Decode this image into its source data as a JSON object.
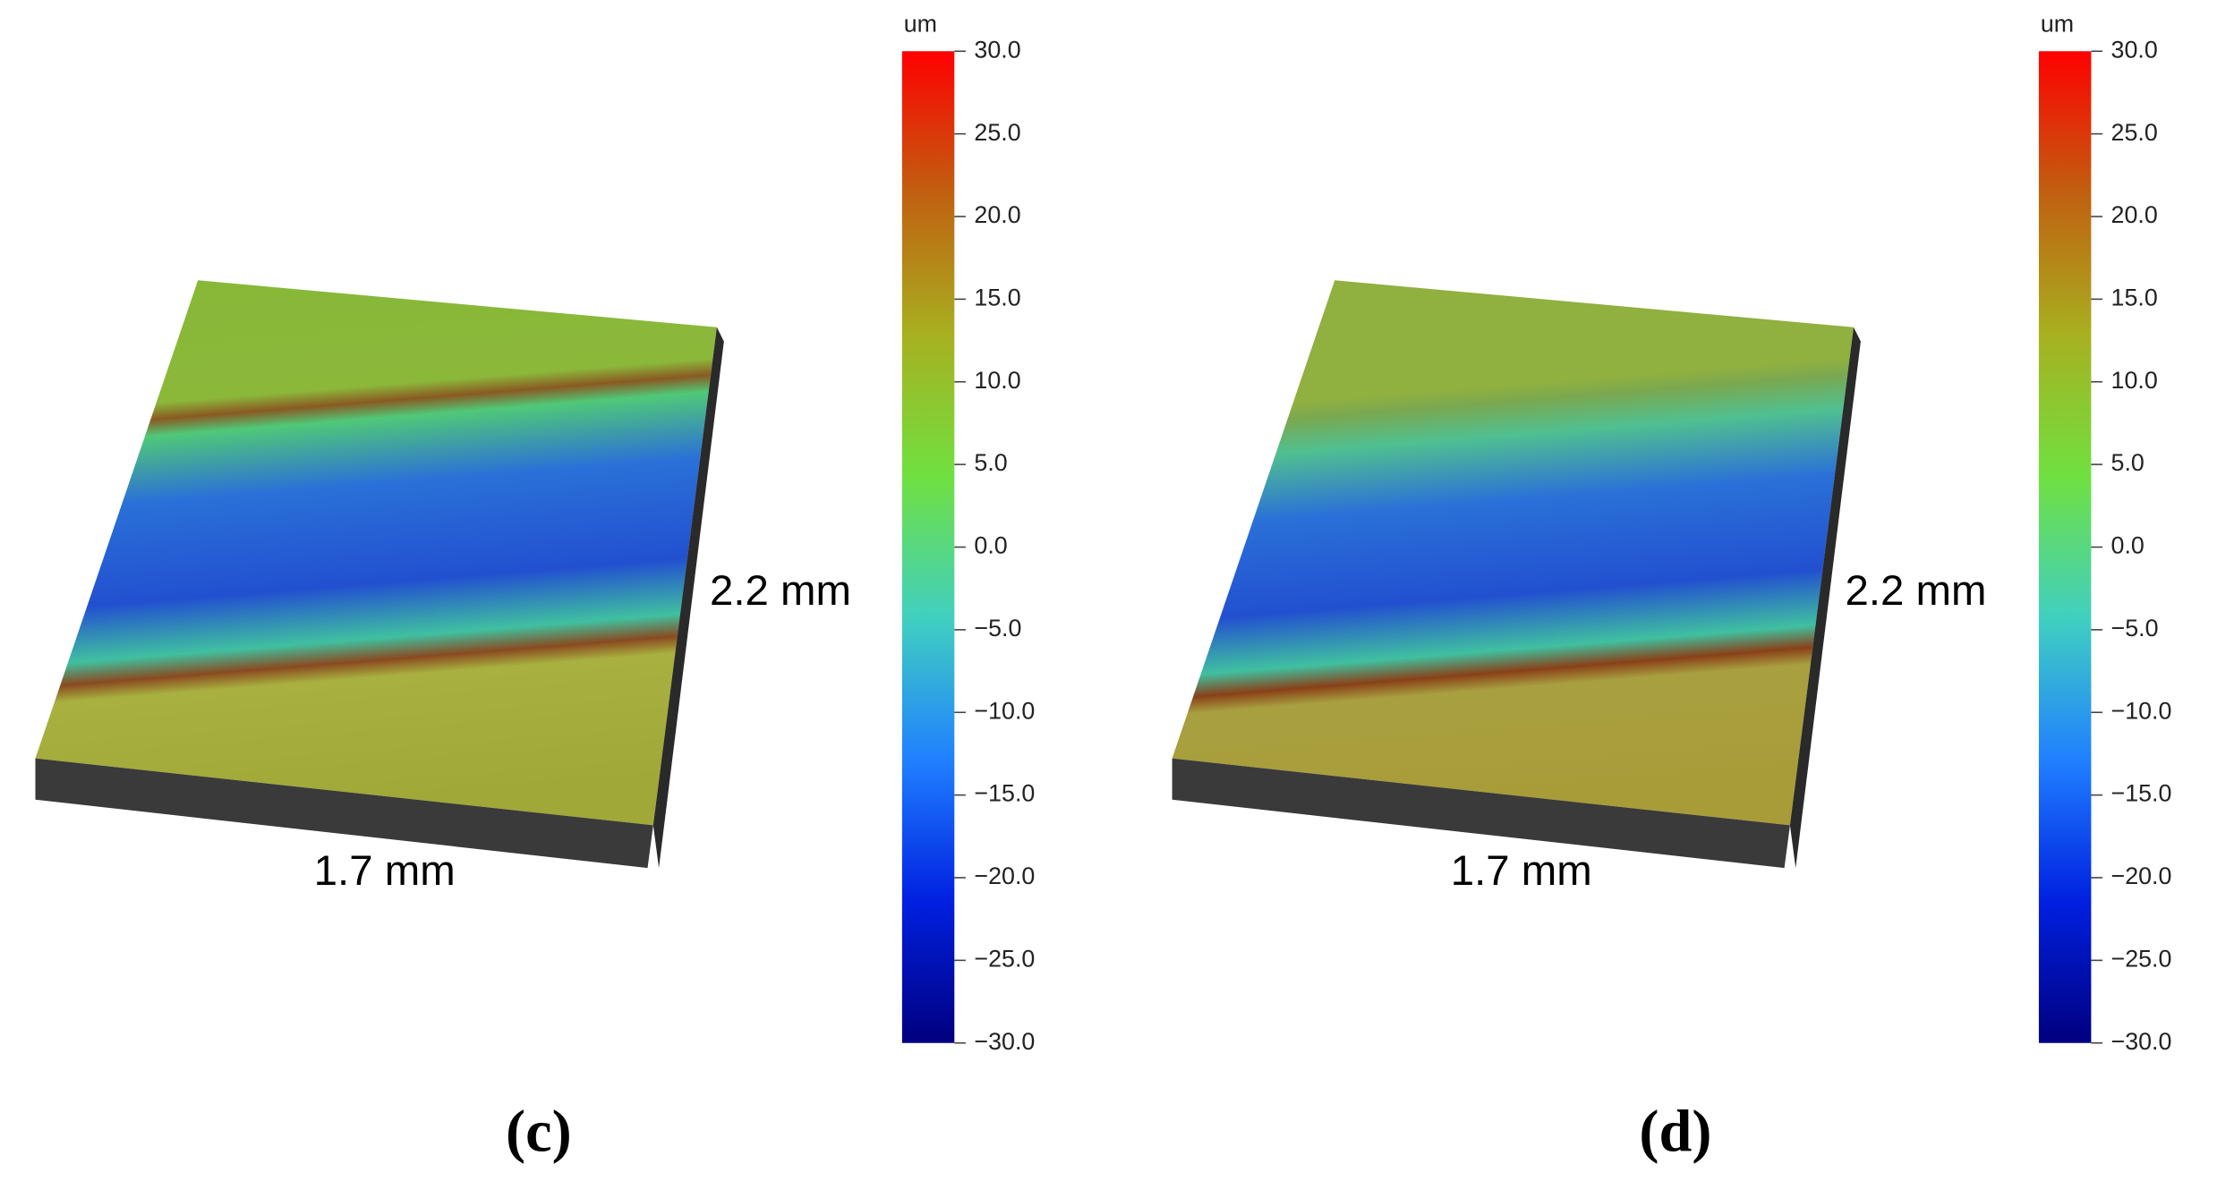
{
  "panels": [
    {
      "label": "(c)",
      "unit": "um",
      "width_label": "1.7 mm",
      "depth_label": "2.2 mm",
      "colorbar": {
        "lim": [
          -30,
          30
        ],
        "ticks": [
          {
            "value": 30,
            "label": "30.0"
          },
          {
            "value": 25,
            "label": "25.0"
          },
          {
            "value": 20,
            "label": "20.0"
          },
          {
            "value": 15,
            "label": "15.0"
          },
          {
            "value": 10,
            "label": "10.0"
          },
          {
            "value": 5,
            "label": "5.0"
          },
          {
            "value": 0,
            "label": "0.0"
          },
          {
            "value": -5,
            "label": "−5.0"
          },
          {
            "value": -10,
            "label": "−10.0"
          },
          {
            "value": -15,
            "label": "−15.0"
          },
          {
            "value": -20,
            "label": "−20.0"
          },
          {
            "value": -25,
            "label": "−25.0"
          },
          {
            "value": -30,
            "label": "−30.0"
          }
        ],
        "colors": [
          "#00007f",
          "#0020e0",
          "#2080ff",
          "#40d0c0",
          "#70e040",
          "#a8b020",
          "#c06010",
          "#ff0000"
        ]
      }
    },
    {
      "label": "(d)",
      "unit": "um",
      "width_label": "1.7 mm",
      "depth_label": "2.2 mm",
      "colorbar": {
        "lim": [
          -30,
          30
        ],
        "ticks": [
          {
            "value": 30,
            "label": "30.0"
          },
          {
            "value": 25,
            "label": "25.0"
          },
          {
            "value": 20,
            "label": "20.0"
          },
          {
            "value": 15,
            "label": "15.0"
          },
          {
            "value": 10,
            "label": "10.0"
          },
          {
            "value": 5,
            "label": "5.0"
          },
          {
            "value": 0,
            "label": "0.0"
          },
          {
            "value": -5,
            "label": "−5.0"
          },
          {
            "value": -10,
            "label": "−10.0"
          },
          {
            "value": -15,
            "label": "−15.0"
          },
          {
            "value": -20,
            "label": "−20.0"
          },
          {
            "value": -25,
            "label": "−25.0"
          },
          {
            "value": -30,
            "label": "−30.0"
          }
        ],
        "colors": [
          "#00007f",
          "#0020e0",
          "#2080ff",
          "#40d0c0",
          "#70e040",
          "#a8b020",
          "#c06010",
          "#ff0000"
        ]
      }
    }
  ]
}
